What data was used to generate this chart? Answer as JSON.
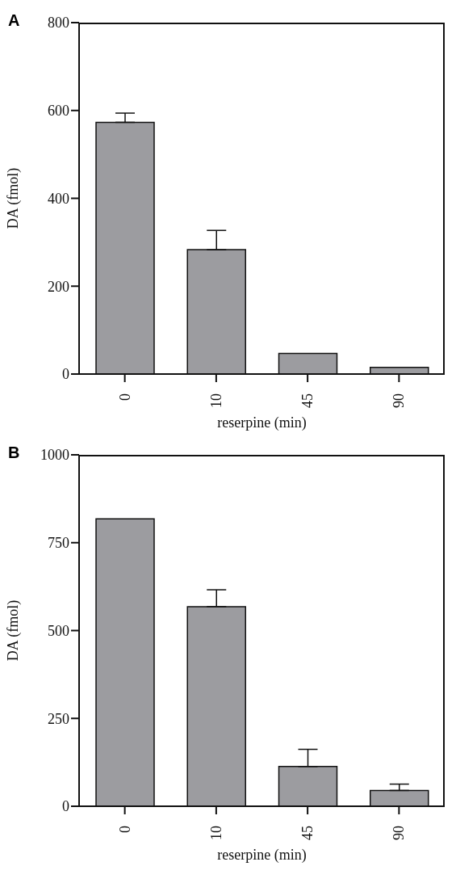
{
  "chart_data": [
    {
      "type": "bar",
      "title": "A",
      "xlabel": "reserpine (min)",
      "ylabel": "DA (fmol)",
      "categories": [
        "0",
        "10",
        "45",
        "90"
      ],
      "values": [
        573,
        283,
        47,
        15
      ],
      "errors": [
        [
          573,
          594
        ],
        [
          283,
          327
        ],
        null,
        null
      ],
      "color": "#9c9ca0",
      "ylim": [
        0,
        800
      ],
      "yticks": [
        0,
        200,
        400,
        600,
        800
      ],
      "grid": false,
      "legend": false
    },
    {
      "type": "bar",
      "title": "B",
      "xlabel": "reserpine (min)",
      "ylabel": "DA (fmol)",
      "categories": [
        "0",
        "10",
        "45",
        "90"
      ],
      "values": [
        818,
        568,
        113,
        45
      ],
      "errors": [
        null,
        [
          568,
          616
        ],
        [
          113,
          162
        ],
        [
          45,
          63
        ]
      ],
      "color": "#9c9ca0",
      "ylim": [
        0,
        1000
      ],
      "yticks": [
        0,
        250,
        500,
        750,
        1000
      ],
      "grid": false,
      "legend": false
    }
  ]
}
